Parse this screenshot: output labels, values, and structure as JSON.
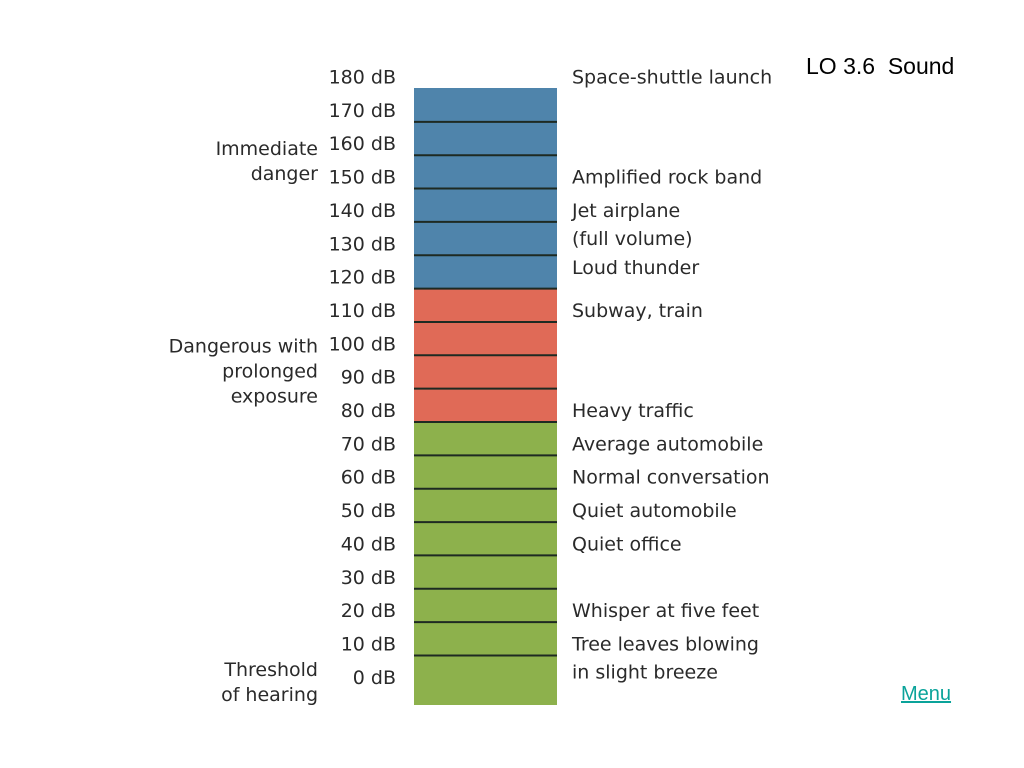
{
  "title": "LO 3.6  Sound",
  "menu_label": "Menu",
  "colors": {
    "danger": "#4f84ab",
    "prolonged": "#e06a57",
    "safe": "#8db14c",
    "divider": "#1e2a22",
    "text": "#2a2a2a",
    "menu": "#0aa39a"
  },
  "levels": [
    "180 dB",
    "170 dB",
    "160 dB",
    "150 dB",
    "140 dB",
    "130 dB",
    "120 dB",
    "110 dB",
    "100 dB",
    "90 dB",
    "80 dB",
    "70 dB",
    "60 dB",
    "50 dB",
    "40 dB",
    "30 dB",
    "20 dB",
    "10 dB",
    "0 dB"
  ],
  "zones": [
    {
      "name": "danger",
      "from": 180,
      "to": 120,
      "lines": [
        "Immediate",
        "danger"
      ],
      "color": "#4f84ab"
    },
    {
      "name": "prolonged",
      "from": 120,
      "to": 80,
      "lines": [
        "Dangerous with",
        "prolonged",
        "exposure"
      ],
      "color": "#e06a57"
    },
    {
      "name": "safe",
      "from": 80,
      "to": 0,
      "lines": [
        "Threshold",
        "of hearing"
      ],
      "color": "#8db14c"
    }
  ],
  "examples": [
    {
      "db": 180,
      "lines": [
        "Space-shuttle launch"
      ]
    },
    {
      "db": 150,
      "lines": [
        "Amplified rock band"
      ]
    },
    {
      "db": 140,
      "lines": [
        "Jet airplane",
        "(full volume)"
      ]
    },
    {
      "db": 125,
      "lines": [
        "Loud thunder"
      ]
    },
    {
      "db": 110,
      "lines": [
        "Subway, train"
      ]
    },
    {
      "db": 80,
      "lines": [
        "Heavy traffic"
      ]
    },
    {
      "db": 70,
      "lines": [
        "Average automobile"
      ]
    },
    {
      "db": 60,
      "lines": [
        "Normal conversation"
      ]
    },
    {
      "db": 50,
      "lines": [
        "Quiet automobile"
      ]
    },
    {
      "db": 40,
      "lines": [
        "Quiet office"
      ]
    },
    {
      "db": 20,
      "lines": [
        "Whisper at five feet"
      ]
    },
    {
      "db": 10,
      "lines": [
        "Tree leaves blowing",
        "in slight breeze"
      ]
    }
  ]
}
